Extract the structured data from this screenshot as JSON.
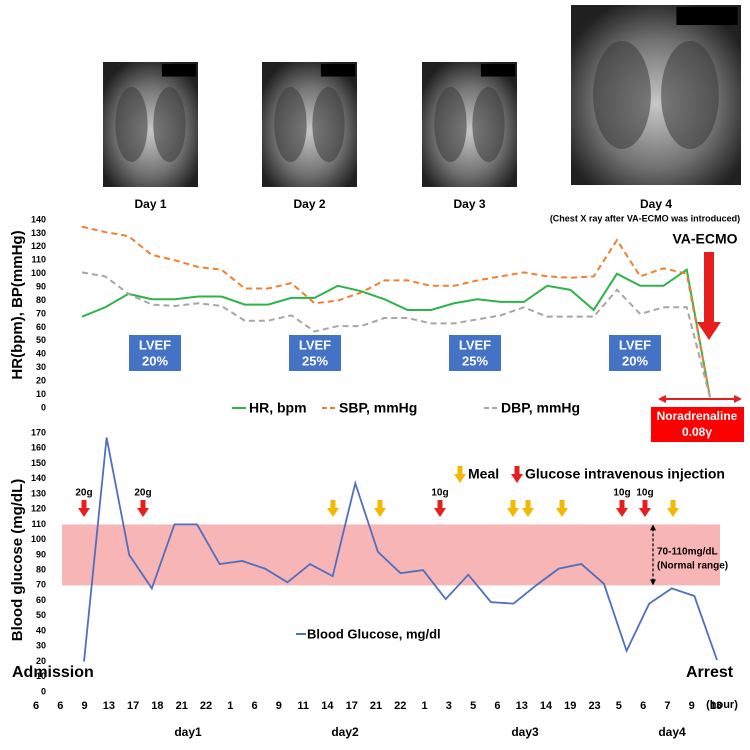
{
  "images": [
    {
      "label": "Day 1"
    },
    {
      "label": "Day 2"
    },
    {
      "label": "Day 3"
    },
    {
      "label": "Day 4",
      "note": "(Chest X ray after VA-ECMO was introduced)"
    }
  ],
  "chart_data": [
    {
      "type": "line",
      "y_label": "HR(bpm), BP(mmHg)",
      "ylim": [
        0,
        140
      ],
      "yticks": [
        0,
        10,
        20,
        30,
        40,
        50,
        60,
        70,
        80,
        90,
        100,
        110,
        120,
        130,
        140
      ],
      "series": [
        {
          "name": "HR, bpm",
          "color": "#2db34a",
          "dashed": false,
          "values": [
            68,
            75,
            85,
            81,
            81,
            83,
            83,
            77,
            77,
            82,
            82,
            91,
            87,
            81,
            73,
            73,
            78,
            81,
            79,
            79,
            91,
            88,
            73,
            100,
            91,
            91,
            103,
            8
          ]
        },
        {
          "name": "SBP, mmHg",
          "color": "#f08030",
          "dashed": true,
          "values": [
            135,
            131,
            128,
            114,
            110,
            105,
            103,
            89,
            89,
            93,
            78,
            80,
            86,
            95,
            95,
            91,
            91,
            95,
            98,
            101,
            98,
            97,
            98,
            125,
            98,
            104,
            100,
            8
          ]
        },
        {
          "name": "DBP, mmHg",
          "color": "#a6a6a6",
          "dashed": true,
          "values": [
            101,
            98,
            85,
            77,
            76,
            78,
            76,
            65,
            65,
            69,
            57,
            61,
            61,
            67,
            67,
            63,
            63,
            66,
            69,
            75,
            68,
            68,
            68,
            88,
            70,
            75,
            75,
            8
          ]
        }
      ],
      "lvef": {
        "label": "LVEF",
        "values": [
          20,
          25,
          25,
          20
        ],
        "value_labels": [
          "20%",
          "25%",
          "25%",
          "20%"
        ]
      },
      "ecmo_label": "VA-ECMO",
      "drug": [
        "Noradrenaline",
        "0.08γ"
      ]
    },
    {
      "type": "line",
      "y_label": "Blood glucose (mg/dL)",
      "ylim": [
        0,
        170
      ],
      "yticks": [
        0,
        10,
        20,
        30,
        40,
        50,
        60,
        70,
        80,
        90,
        100,
        110,
        120,
        130,
        140,
        150,
        160,
        170
      ],
      "categories": [
        "6",
        "6",
        "9",
        "13",
        "17",
        "18",
        "21",
        "22",
        "1",
        "6",
        "9",
        "11",
        "14",
        "17",
        "21",
        "22",
        "1",
        "3",
        "5",
        "6",
        "13",
        "14",
        "19",
        "23",
        "5",
        "6",
        "7",
        "9",
        "13"
      ],
      "series": [
        {
          "name": "Blood Glucose, mg/dl",
          "color": "#4f6fc0",
          "values": [
            20,
            167,
            90,
            68,
            110,
            110,
            84,
            86,
            81,
            72,
            84,
            76,
            137,
            92,
            78,
            80,
            61,
            77,
            59,
            58,
            70,
            81,
            84,
            71,
            27,
            58,
            68,
            63,
            21
          ]
        }
      ],
      "band": {
        "range": [
          70,
          110
        ],
        "color": "#f7a8a8",
        "label": [
          "70-110mg/dL",
          "(Normal range)"
        ]
      },
      "events": {
        "meal": "Meal",
        "injection": "Glucose intravenous injection",
        "doses": [
          "20g",
          "20g",
          "10g",
          "10g",
          "10g"
        ]
      },
      "start_label": "Admission",
      "end_label": "Arrest",
      "days": [
        "day1",
        "day2",
        "day3",
        "day4"
      ],
      "x_unit": "(hour)"
    }
  ]
}
